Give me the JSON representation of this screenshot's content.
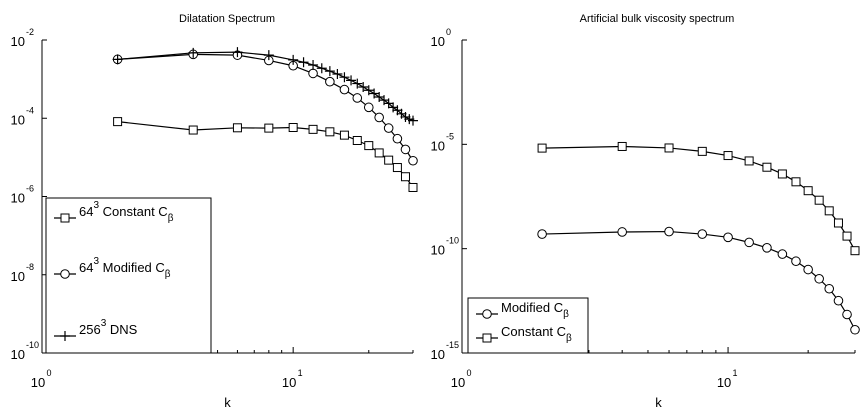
{
  "chart_data": [
    {
      "type": "line",
      "title": "Dilatation Spectrum",
      "xlabel": "k",
      "ylabel": "",
      "x_scale": "log",
      "y_scale": "log",
      "xlim": [
        1,
        30
      ],
      "ylim": [
        1e-10,
        0.01
      ],
      "x_ticks": [
        {
          "base": "10",
          "exp": "0",
          "value": 1
        },
        {
          "base": "10",
          "exp": "1",
          "value": 10
        }
      ],
      "y_ticks": [
        {
          "base": "10",
          "exp": "-2",
          "value": 0.01
        },
        {
          "base": "10",
          "exp": "-4",
          "value": 0.0001
        },
        {
          "base": "10",
          "exp": "-6",
          "value": 1e-06
        },
        {
          "base": "10",
          "exp": "-8",
          "value": 1e-08
        },
        {
          "base": "10",
          "exp": "-10",
          "value": 1e-10
        }
      ],
      "legend_position": "bottom-left",
      "series": [
        {
          "name": "64³ Constant Cβ",
          "legend": {
            "pre": "64",
            "sup": "3",
            "mid": " Constant C",
            "sub": "β"
          },
          "marker": "square",
          "x": [
            2,
            4,
            6,
            8,
            10,
            12,
            14,
            16,
            18,
            20,
            22,
            24,
            26,
            28,
            30
          ],
          "y": [
            8.2e-05,
            5e-05,
            5.7e-05,
            5.6e-05,
            5.8e-05,
            5.2e-05,
            4.5e-05,
            3.7e-05,
            2.7e-05,
            2e-05,
            1.3e-05,
            8.5e-06,
            5.5e-06,
            3.2e-06,
            1.7e-06
          ]
        },
        {
          "name": "64³ Modified Cβ",
          "legend": {
            "pre": "64",
            "sup": "3",
            "mid": " Modified C",
            "sub": "β"
          },
          "marker": "circle",
          "x": [
            2,
            4,
            6,
            8,
            10,
            12,
            14,
            16,
            18,
            20,
            22,
            24,
            26,
            28,
            30
          ],
          "y": [
            0.0032,
            0.0043,
            0.0041,
            0.003,
            0.0022,
            0.0014,
            0.00086,
            0.00054,
            0.00033,
            0.00019,
            0.000105,
            5.6e-05,
            3e-05,
            1.6e-05,
            8.2e-06
          ]
        },
        {
          "name": "256³ DNS",
          "legend": {
            "pre": "256",
            "sup": "3",
            "mid": " DNS",
            "sub": ""
          },
          "marker": "plus",
          "x": [
            2,
            4,
            6,
            8,
            10,
            11,
            12,
            13,
            14,
            15,
            16,
            17,
            18,
            19,
            20,
            21,
            22,
            23,
            24,
            25,
            26,
            27,
            28,
            29,
            30
          ],
          "y": [
            0.0032,
            0.0047,
            0.0049,
            0.0041,
            0.0031,
            0.0027,
            0.0023,
            0.0019,
            0.0016,
            0.00135,
            0.00112,
            0.00093,
            0.00077,
            0.00063,
            0.00052,
            0.00043,
            0.00035,
            0.00029,
            0.00024,
            0.00019,
            0.00016,
            0.00013,
            0.000108,
            9.5e-05,
            8.7e-05
          ]
        }
      ]
    },
    {
      "type": "line",
      "title": "Artificial bulk viscosity spectrum",
      "xlabel": "k",
      "ylabel": "",
      "x_scale": "log",
      "y_scale": "log",
      "xlim": [
        1,
        30
      ],
      "ylim": [
        1e-15,
        1
      ],
      "x_ticks": [
        {
          "base": "10",
          "exp": "0",
          "value": 1
        },
        {
          "base": "10",
          "exp": "1",
          "value": 10
        }
      ],
      "y_ticks": [
        {
          "base": "10",
          "exp": "0",
          "value": 1
        },
        {
          "base": "10",
          "exp": "-5",
          "value": 1e-05
        },
        {
          "base": "10",
          "exp": "-10",
          "value": 1e-10
        },
        {
          "base": "10",
          "exp": "-15",
          "value": 1e-15
        }
      ],
      "legend_position": "bottom-left",
      "series": [
        {
          "name": "Modified Cβ",
          "legend": {
            "pre": "",
            "sup": "",
            "mid": "Modified C",
            "sub": "β"
          },
          "marker": "circle",
          "x": [
            2,
            4,
            6,
            8,
            10,
            12,
            14,
            16,
            18,
            20,
            22,
            24,
            26,
            28,
            30
          ],
          "y": [
            5e-10,
            6.3e-10,
            6.6e-10,
            5e-10,
            3.5e-10,
            2e-10,
            1.1e-10,
            5.5e-11,
            2.5e-11,
            1e-11,
            3.6e-12,
            1.2e-12,
            3.2e-13,
            7e-14,
            1.3e-14
          ]
        },
        {
          "name": "Constant Cβ",
          "legend": {
            "pre": "",
            "sup": "",
            "mid": "Constant C",
            "sub": "β"
          },
          "marker": "square",
          "x": [
            2,
            4,
            6,
            8,
            10,
            12,
            14,
            16,
            18,
            20,
            22,
            24,
            26,
            28,
            30
          ],
          "y": [
            6.6e-06,
            7.9e-06,
            6.7e-06,
            4.6e-06,
            2.9e-06,
            1.6e-06,
            8e-07,
            3.8e-07,
            1.6e-07,
            6e-08,
            2.1e-08,
            6.5e-09,
            1.7e-09,
            4e-10,
            8e-11
          ]
        }
      ]
    }
  ]
}
